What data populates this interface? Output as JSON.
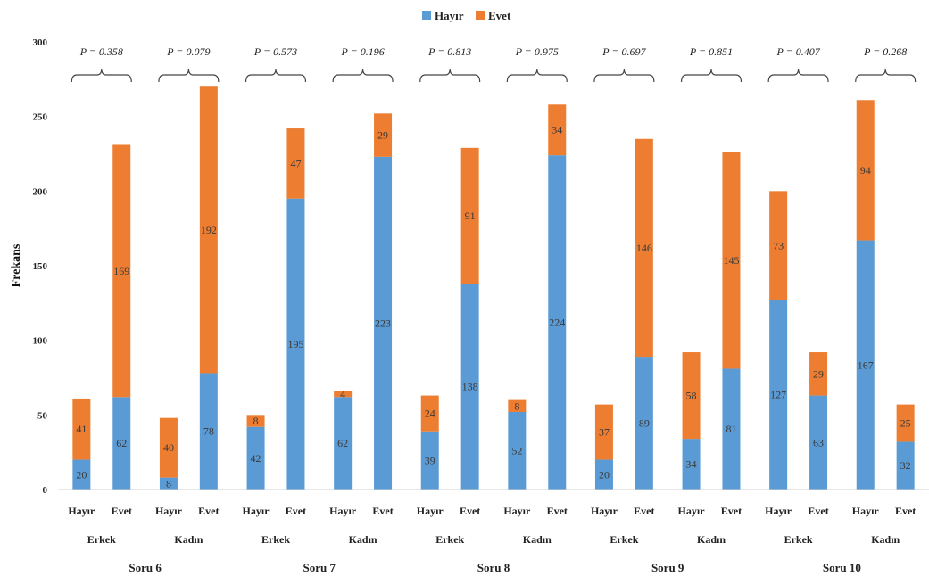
{
  "chart_data": {
    "type": "bar",
    "stacked": true,
    "ylabel": "Frekans",
    "ylim": [
      0,
      300
    ],
    "yticks": [
      0,
      50,
      100,
      150,
      200,
      250,
      300
    ],
    "grid": false,
    "legend_position": "top",
    "series": [
      {
        "name": "Hayır",
        "color": "#5b9bd5"
      },
      {
        "name": "Evet",
        "color": "#ed7d31"
      }
    ],
    "answers": [
      "Hayır",
      "Evet"
    ],
    "genders": [
      "Erkek",
      "Kadın"
    ],
    "questions": [
      {
        "label": "Soru 6",
        "groups": [
          {
            "gender": "Erkek",
            "p": "P = 0.358",
            "bars": [
              {
                "hayir": 20,
                "evet": 41
              },
              {
                "hayir": 62,
                "evet": 169
              }
            ]
          },
          {
            "gender": "Kadın",
            "p": "P = 0.079",
            "bars": [
              {
                "hayir": 8,
                "evet": 40
              },
              {
                "hayir": 78,
                "evet": 192
              }
            ]
          }
        ]
      },
      {
        "label": "Soru 7",
        "groups": [
          {
            "gender": "Erkek",
            "p": "P = 0.573",
            "bars": [
              {
                "hayir": 42,
                "evet": 8
              },
              {
                "hayir": 195,
                "evet": 47
              }
            ]
          },
          {
            "gender": "Kadın",
            "p": "P = 0.196",
            "bars": [
              {
                "hayir": 62,
                "evet": 4
              },
              {
                "hayir": 223,
                "evet": 29
              }
            ]
          }
        ]
      },
      {
        "label": "Soru 8",
        "groups": [
          {
            "gender": "Erkek",
            "p": "P = 0.813",
            "bars": [
              {
                "hayir": 39,
                "evet": 24
              },
              {
                "hayir": 138,
                "evet": 91
              }
            ]
          },
          {
            "gender": "Kadın",
            "p": "P = 0.975",
            "bars": [
              {
                "hayir": 52,
                "evet": 8
              },
              {
                "hayir": 224,
                "evet": 34
              }
            ]
          }
        ]
      },
      {
        "label": "Soru 9",
        "groups": [
          {
            "gender": "Erkek",
            "p": "P = 0.697",
            "bars": [
              {
                "hayir": 20,
                "evet": 37
              },
              {
                "hayir": 89,
                "evet": 146
              }
            ]
          },
          {
            "gender": "Kadın",
            "p": "P = 0.851",
            "bars": [
              {
                "hayir": 34,
                "evet": 58
              },
              {
                "hayir": 81,
                "evet": 145
              }
            ]
          }
        ]
      },
      {
        "label": "Soru 10",
        "groups": [
          {
            "gender": "Erkek",
            "p": "P = 0.407",
            "bars": [
              {
                "hayir": 127,
                "evet": 73
              },
              {
                "hayir": 63,
                "evet": 29
              }
            ]
          },
          {
            "gender": "Kadın",
            "p": "P = 0.268",
            "bars": [
              {
                "hayir": 167,
                "evet": 94
              },
              {
                "hayir": 32,
                "evet": 25
              }
            ]
          }
        ]
      }
    ]
  }
}
